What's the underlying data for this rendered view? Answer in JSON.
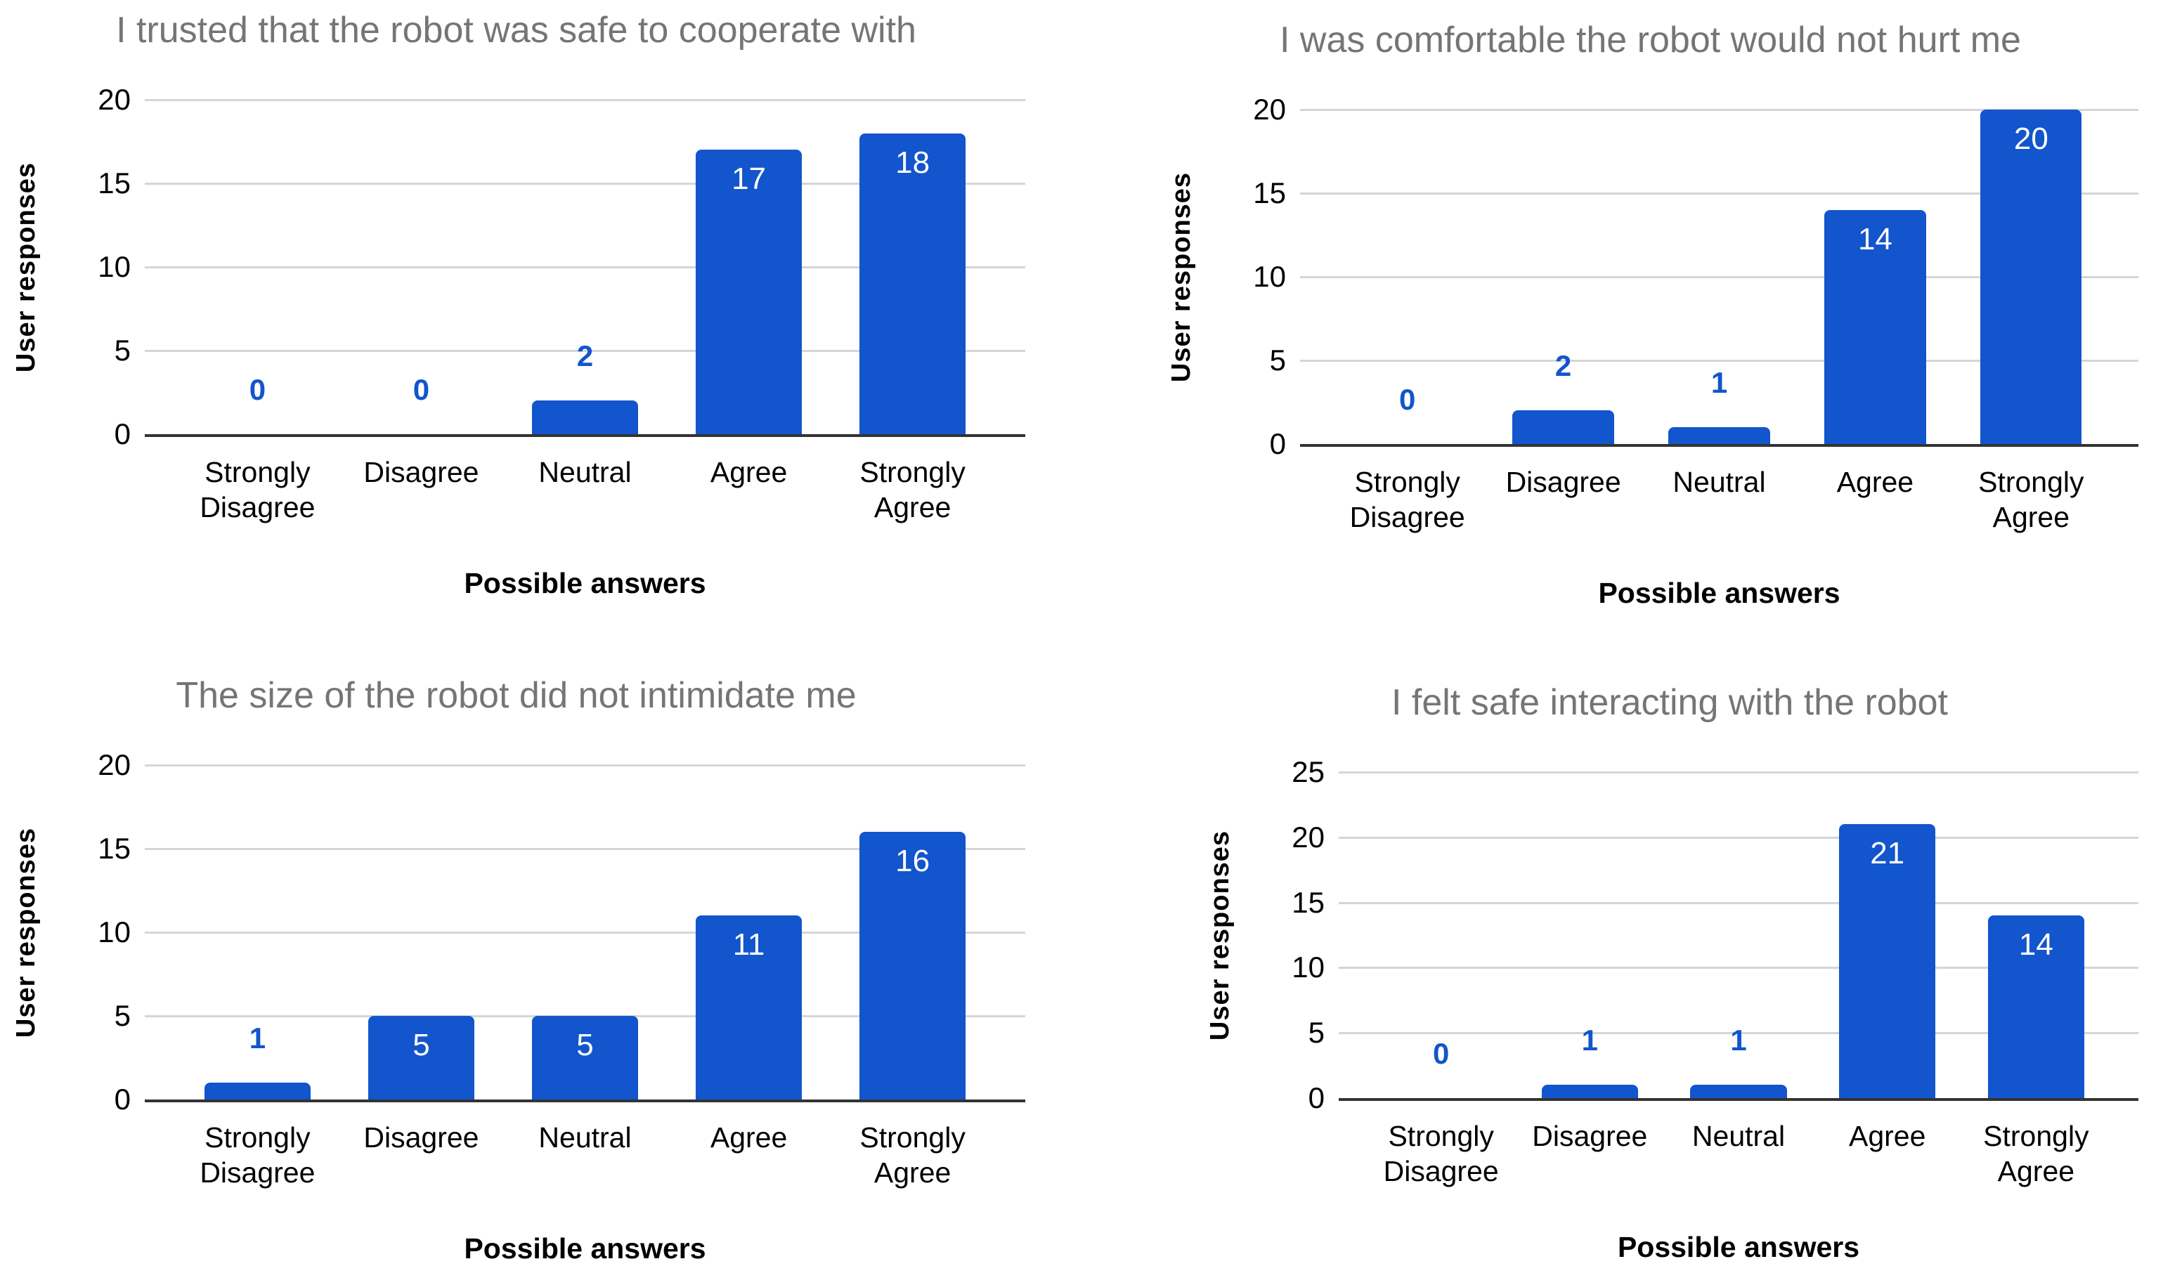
{
  "page": {
    "background": "#ffffff"
  },
  "colors": {
    "bar": "#1255cc",
    "label_inside_bar": "#ffffff",
    "label_above_bar": "#1255cc",
    "title": "#757575",
    "axis_text": "#000000",
    "gridline": "#d5d5d5",
    "baseline": "#333333"
  },
  "chart_data": [
    {
      "type": "bar",
      "title": "I trusted that the robot was safe to cooperate with",
      "xlabel": "Possible answers",
      "ylabel": "User responses",
      "categories": [
        "Strongly\nDisagree",
        "Disagree",
        "Neutral",
        "Agree",
        "Strongly\nAgree"
      ],
      "values": [
        0,
        0,
        2,
        17,
        18
      ],
      "ylim": [
        0,
        20
      ],
      "yticks": [
        0,
        5,
        10,
        15,
        20
      ],
      "grid": true,
      "legend": "none"
    },
    {
      "type": "bar",
      "title": "I was comfortable the robot would not hurt me",
      "xlabel": "Possible answers",
      "ylabel": "User responses",
      "categories": [
        "Strongly\nDisagree",
        "Disagree",
        "Neutral",
        "Agree",
        "Strongly\nAgree"
      ],
      "values": [
        0,
        2,
        1,
        14,
        20
      ],
      "ylim": [
        0,
        20
      ],
      "yticks": [
        0,
        5,
        10,
        15,
        20
      ],
      "grid": true,
      "legend": "none"
    },
    {
      "type": "bar",
      "title": "The size of the robot did not intimidate me",
      "xlabel": "Possible answers",
      "ylabel": "User responses",
      "categories": [
        "Strongly\nDisagree",
        "Disagree",
        "Neutral",
        "Agree",
        "Strongly\nAgree"
      ],
      "values": [
        1,
        5,
        5,
        11,
        16
      ],
      "ylim": [
        0,
        20
      ],
      "yticks": [
        0,
        5,
        10,
        15,
        20
      ],
      "grid": true,
      "legend": "none"
    },
    {
      "type": "bar",
      "title": "I felt safe interacting with the robot",
      "xlabel": "Possible answers",
      "ylabel": "User responses",
      "categories": [
        "Strongly\nDisagree",
        "Disagree",
        "Neutral",
        "Agree",
        "Strongly\nAgree"
      ],
      "values": [
        0,
        1,
        1,
        21,
        14
      ],
      "ylim": [
        0,
        25
      ],
      "yticks": [
        0,
        5,
        10,
        15,
        20,
        25
      ],
      "grid": true,
      "legend": "none"
    }
  ]
}
